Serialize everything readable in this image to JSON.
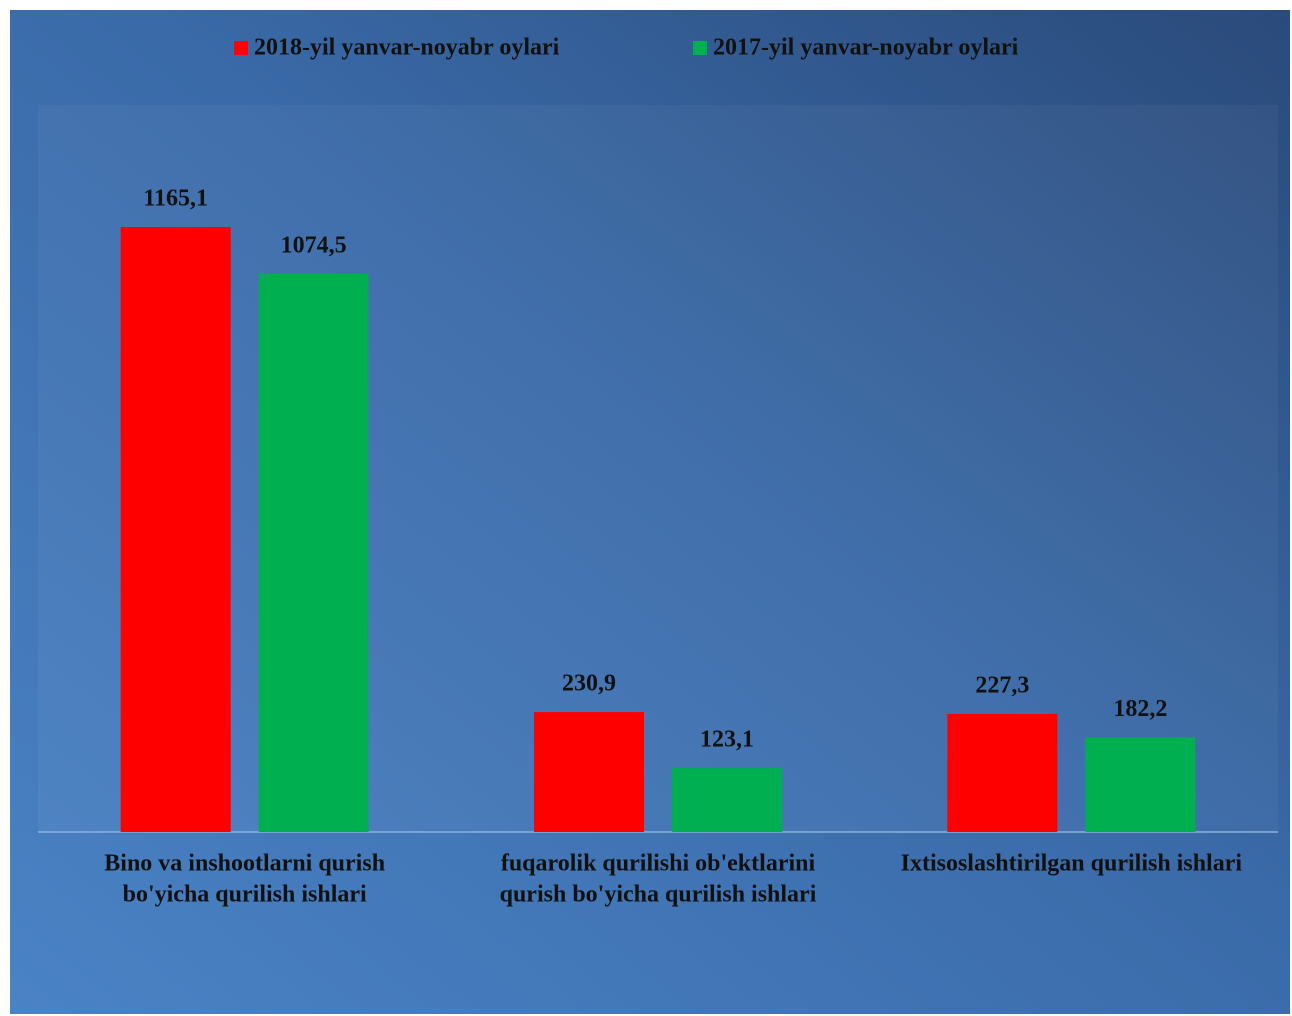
{
  "chart_data": {
    "type": "bar",
    "categories": [
      [
        "Bino va inshootlarni qurish",
        "bo'yicha qurilish ishlari"
      ],
      [
        "fuqarolik qurilishi ob'ektlarini",
        "qurish bo'yicha qurilish ishlari"
      ],
      [
        "Ixtisoslashtirilgan qurilish ishlari"
      ]
    ],
    "series": [
      {
        "name": "2018-yil yanvar-noyabr oylari",
        "color": "#ff0000",
        "values": [
          1165.1,
          230.9,
          227.3
        ],
        "value_labels": [
          "1165,1",
          "230,9",
          "227,3"
        ]
      },
      {
        "name": "2017-yil yanvar-noyabr oylari",
        "color": "#00b050",
        "values": [
          1074.5,
          123.1,
          182.2
        ],
        "value_labels": [
          "1074,5",
          "123,1",
          "182,2"
        ]
      }
    ],
    "ylim": [
      0,
      1400
    ],
    "legend": "top"
  }
}
